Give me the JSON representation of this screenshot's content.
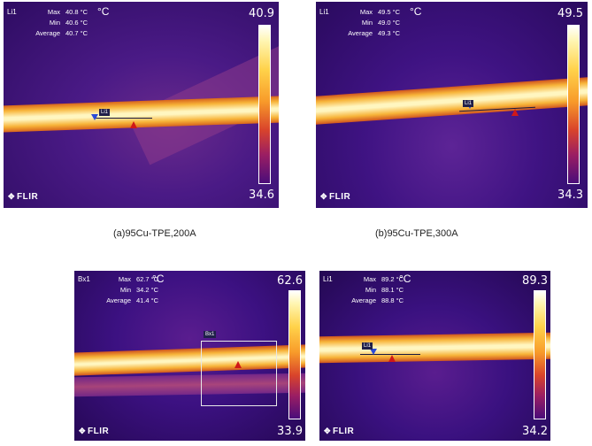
{
  "panels": [
    {
      "tool": "Li1",
      "max_label": "Max",
      "max_value": "40.8 °C",
      "min_label": "Min",
      "min_value": "40.6 °C",
      "avg_label": "Average",
      "avg_value": "40.7 °C",
      "unit": "°C",
      "scale_max": "40.9",
      "scale_min": "34.6",
      "logo": "FLIR",
      "caption": "(a)95Cu-TPE,200A",
      "marker_tag": "Li1"
    },
    {
      "tool": "Li1",
      "max_label": "Max",
      "max_value": "49.5 °C",
      "min_label": "Min",
      "min_value": "49.0 °C",
      "avg_label": "Average",
      "avg_value": "49.3 °C",
      "unit": "°C",
      "scale_max": "49.5",
      "scale_min": "34.3",
      "logo": "FLIR",
      "caption": "(b)95Cu-TPE,300A",
      "marker_tag": "Li1"
    },
    {
      "tool": "Bx1",
      "max_label": "Max",
      "max_value": "62.7 °C",
      "min_label": "Min",
      "min_value": "34.2 °C",
      "avg_label": "Average",
      "avg_value": "41.4 °C",
      "unit": "°C",
      "scale_max": "62.6",
      "scale_min": "33.9",
      "logo": "FLIR",
      "marker_tag": "Bx1"
    },
    {
      "tool": "Li1",
      "max_label": "Max",
      "max_value": "89.2 °C",
      "min_label": "Min",
      "min_value": "88.1 °C",
      "avg_label": "Average",
      "avg_value": "88.8 °C",
      "unit": "°C",
      "scale_max": "89.3",
      "scale_min": "34.2",
      "logo": "FLIR",
      "marker_tag": "Li1"
    }
  ],
  "colors": {
    "palette": "iron",
    "hot": "#fffbe0",
    "warm": "#f5a11e",
    "cool": "#3a0d6e"
  }
}
